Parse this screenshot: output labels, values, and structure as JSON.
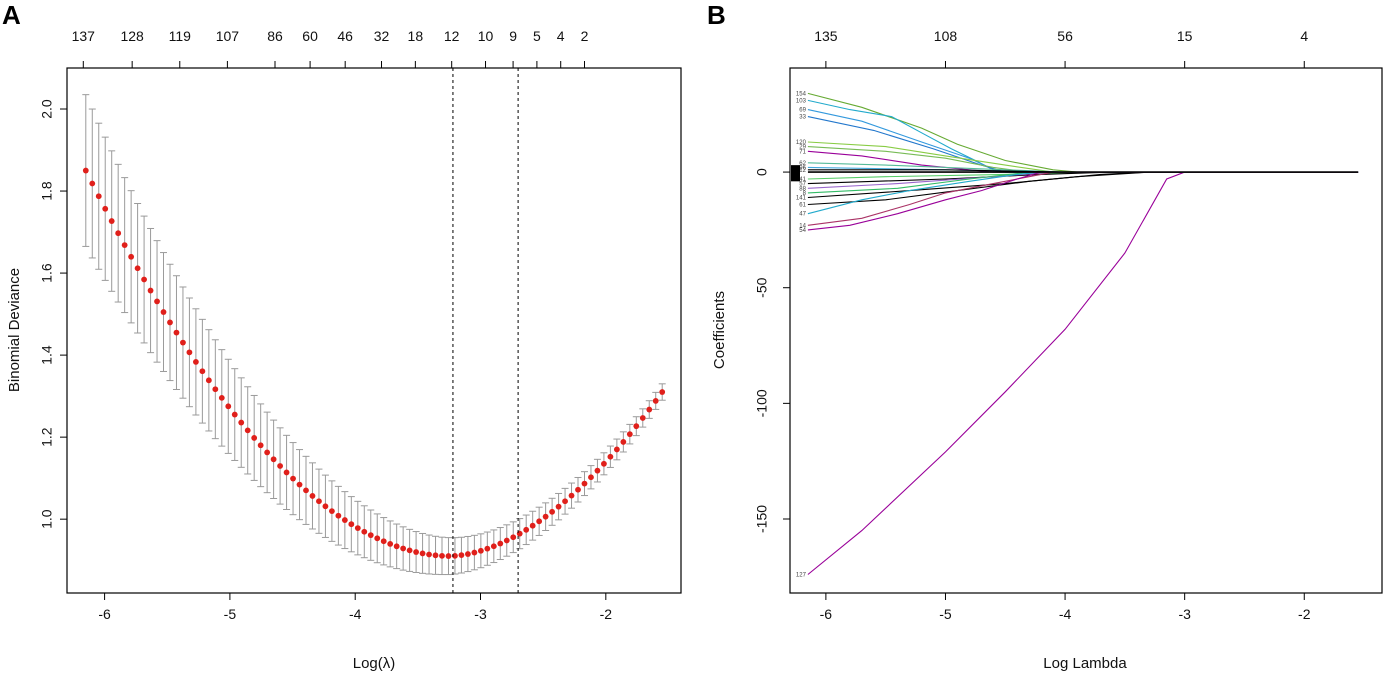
{
  "chart_data": [
    {
      "panel": "A",
      "type": "line",
      "title": "",
      "xlabel": "Log(λ)",
      "ylabel": "Binomial Deviance",
      "xlim": [
        -6.3,
        -1.4
      ],
      "ylim": [
        0.82,
        2.1
      ],
      "x_ticks": [
        "-6",
        "-5",
        "-4",
        "-3",
        "-2"
      ],
      "y_ticks": [
        "1.0",
        "1.2",
        "1.4",
        "1.6",
        "1.8",
        "2.0"
      ],
      "top_axis": {
        "positions": [
          -6.17,
          -5.78,
          -5.4,
          -5.02,
          -4.64,
          -4.36,
          -4.08,
          -3.79,
          -3.52,
          -3.23,
          -2.96,
          -2.74,
          -2.55,
          -2.36,
          -2.17
        ],
        "labels": [
          "137",
          "128",
          "119",
          "107",
          "86",
          "60",
          "46",
          "32",
          "18",
          "12",
          "10",
          "9",
          "5",
          "4",
          "2"
        ]
      },
      "cv_curve": {
        "x_start": -6.15,
        "x_end": -1.55,
        "n_points": 90,
        "x_min_deviance": -3.25,
        "min_deviance": 0.91,
        "y_at_start": 1.85,
        "y_at_end": 1.31
      },
      "error_bar": {
        "halfwidth_at_start": 0.185,
        "halfwidth_at_min": 0.045,
        "halfwidth_at_end": 0.02
      },
      "vertical_lines": [
        -3.22,
        -2.7
      ],
      "point_color": "#e0201b",
      "errorbar_color": "#9a9a9a"
    },
    {
      "panel": "B",
      "type": "line",
      "title": "",
      "xlabel": "Log Lambda",
      "ylabel": "Coefficients",
      "xlim": [
        -6.3,
        -1.35
      ],
      "ylim": [
        -182,
        45
      ],
      "x_ticks": [
        "-6",
        "-5",
        "-4",
        "-3",
        "-2"
      ],
      "y_ticks": [
        "0",
        "-50",
        "-100",
        "-150"
      ],
      "top_axis": {
        "positions": [
          -6.0,
          -5.0,
          -4.0,
          -3.0,
          -2.0
        ],
        "labels": [
          "135",
          "108",
          "56",
          "15",
          "4"
        ]
      },
      "series": [
        {
          "name": "127",
          "color": "#990099",
          "points": [
            [
              -6.15,
              -174
            ],
            [
              -5.7,
              -155
            ],
            [
              -5.0,
              -121
            ],
            [
              -4.5,
              -95
            ],
            [
              -4.0,
              -68
            ],
            [
              -3.5,
              -35
            ],
            [
              -3.15,
              -3
            ],
            [
              -3.0,
              0
            ],
            [
              -1.55,
              0
            ]
          ]
        },
        {
          "name": "154",
          "color": "#66aa33",
          "points": [
            [
              -6.15,
              34
            ],
            [
              -5.7,
              28
            ],
            [
              -5.2,
              19
            ],
            [
              -4.9,
              12
            ],
            [
              -4.5,
              5
            ],
            [
              -4.1,
              1
            ],
            [
              -3.9,
              0
            ],
            [
              -1.55,
              0
            ]
          ]
        },
        {
          "name": "103",
          "color": "#22aacc",
          "points": [
            [
              -6.15,
              31
            ],
            [
              -5.8,
              27
            ],
            [
              -5.45,
              24
            ],
            [
              -5.2,
              17
            ],
            [
              -4.95,
              10
            ],
            [
              -4.75,
              5
            ],
            [
              -4.6,
              1
            ],
            [
              -4.5,
              0
            ],
            [
              -1.55,
              0
            ]
          ]
        },
        {
          "name": "69",
          "color": "#3399dd",
          "points": [
            [
              -6.15,
              27
            ],
            [
              -5.7,
              22
            ],
            [
              -5.2,
              13
            ],
            [
              -4.8,
              6
            ],
            [
              -4.55,
              0
            ],
            [
              -1.55,
              0
            ]
          ]
        },
        {
          "name": "33",
          "color": "#2277cc",
          "points": [
            [
              -6.15,
              24
            ],
            [
              -5.6,
              18
            ],
            [
              -5.1,
              10
            ],
            [
              -4.7,
              3
            ],
            [
              -4.5,
              0
            ],
            [
              -1.55,
              0
            ]
          ]
        },
        {
          "name": "120",
          "color": "#88cc44",
          "points": [
            [
              -6.15,
              13
            ],
            [
              -5.5,
              11
            ],
            [
              -5.0,
              7
            ],
            [
              -4.5,
              3
            ],
            [
              -4.1,
              0
            ],
            [
              -1.55,
              0
            ]
          ]
        },
        {
          "name": "29",
          "color": "#77bb55",
          "points": [
            [
              -6.15,
              11
            ],
            [
              -5.5,
              9
            ],
            [
              -5.0,
              6
            ],
            [
              -4.6,
              2
            ],
            [
              -4.3,
              0
            ],
            [
              -1.55,
              0
            ]
          ]
        },
        {
          "name": "71",
          "color": "#990099",
          "points": [
            [
              -6.15,
              9
            ],
            [
              -5.7,
              7
            ],
            [
              -5.2,
              3
            ],
            [
              -4.8,
              1
            ],
            [
              -4.6,
              0
            ],
            [
              -1.55,
              0
            ]
          ]
        },
        {
          "name": "62",
          "color": "#55bb99",
          "points": [
            [
              -6.15,
              4
            ],
            [
              -5.5,
              3
            ],
            [
              -5.0,
              2
            ],
            [
              -4.5,
              1
            ],
            [
              -4.0,
              0
            ],
            [
              -1.55,
              0
            ]
          ]
        },
        {
          "name": "96",
          "color": "#44aadd",
          "points": [
            [
              -6.15,
              2
            ],
            [
              -5.0,
              1
            ],
            [
              -4.0,
              0
            ],
            [
              -1.95,
              0
            ],
            [
              -1.85,
              0
            ],
            [
              -1.55,
              0
            ]
          ]
        },
        {
          "name": "12",
          "color": "#000000",
          "points": [
            [
              -6.15,
              1
            ],
            [
              -5.0,
              1
            ],
            [
              -4.0,
              0
            ],
            [
              -1.55,
              0
            ]
          ]
        },
        {
          "name": "41",
          "color": "#55cc66",
          "points": [
            [
              -6.15,
              -3
            ],
            [
              -5.5,
              -2
            ],
            [
              -4.5,
              -1
            ],
            [
              -3.8,
              0
            ],
            [
              -1.55,
              0
            ]
          ]
        },
        {
          "name": "57",
          "color": "#000000",
          "points": [
            [
              -6.15,
              -5
            ],
            [
              -5.0,
              -3
            ],
            [
              -4.2,
              -1
            ],
            [
              -3.6,
              0
            ],
            [
              -1.55,
              0
            ]
          ]
        },
        {
          "name": "88",
          "color": "#9966cc",
          "points": [
            [
              -6.15,
              -7
            ],
            [
              -5.4,
              -5
            ],
            [
              -4.6,
              -2
            ],
            [
              -4.1,
              0
            ],
            [
              -1.55,
              0
            ]
          ]
        },
        {
          "name": "8",
          "color": "#33bb66",
          "points": [
            [
              -6.15,
              -9
            ],
            [
              -5.4,
              -7
            ],
            [
              -4.8,
              -3
            ],
            [
              -4.3,
              0
            ],
            [
              -1.55,
              0
            ]
          ]
        },
        {
          "name": "141",
          "color": "#000000",
          "points": [
            [
              -6.15,
              -11
            ],
            [
              -5.3,
              -8
            ],
            [
              -4.5,
              -5
            ],
            [
              -3.9,
              -2
            ],
            [
              -3.3,
              0
            ],
            [
              -1.55,
              0
            ]
          ]
        },
        {
          "name": "61",
          "color": "#000000",
          "points": [
            [
              -6.15,
              -14
            ],
            [
              -5.5,
              -12
            ],
            [
              -4.9,
              -8
            ],
            [
              -4.3,
              -4
            ],
            [
              -3.7,
              -1
            ],
            [
              -3.3,
              0
            ],
            [
              -1.55,
              0
            ]
          ]
        },
        {
          "name": "47",
          "color": "#22aacc",
          "points": [
            [
              -6.15,
              -18
            ],
            [
              -5.7,
              -12
            ],
            [
              -5.3,
              -8
            ],
            [
              -4.8,
              -4
            ],
            [
              -4.4,
              -1
            ],
            [
              -4.2,
              0
            ],
            [
              -1.55,
              0
            ]
          ]
        },
        {
          "name": "14",
          "color": "#aa3366",
          "points": [
            [
              -6.15,
              -23
            ],
            [
              -5.7,
              -20
            ],
            [
              -5.3,
              -14
            ],
            [
              -5.0,
              -9
            ],
            [
              -4.6,
              -5
            ],
            [
              -4.3,
              -2
            ],
            [
              -4.1,
              0
            ],
            [
              -1.55,
              0
            ]
          ]
        },
        {
          "name": "54",
          "color": "#990099",
          "points": [
            [
              -6.15,
              -25
            ],
            [
              -5.8,
              -23
            ],
            [
              -5.4,
              -18
            ],
            [
              -5.0,
              -12
            ],
            [
              -4.7,
              -8
            ],
            [
              -4.4,
              -3
            ],
            [
              -4.2,
              0
            ],
            [
              -1.55,
              0
            ]
          ]
        }
      ],
      "zero_line": {
        "x_start": -6.15,
        "x_end": -1.55,
        "value": 0
      }
    }
  ],
  "panels": {
    "A": {
      "letter": "A"
    },
    "B": {
      "letter": "B"
    }
  }
}
